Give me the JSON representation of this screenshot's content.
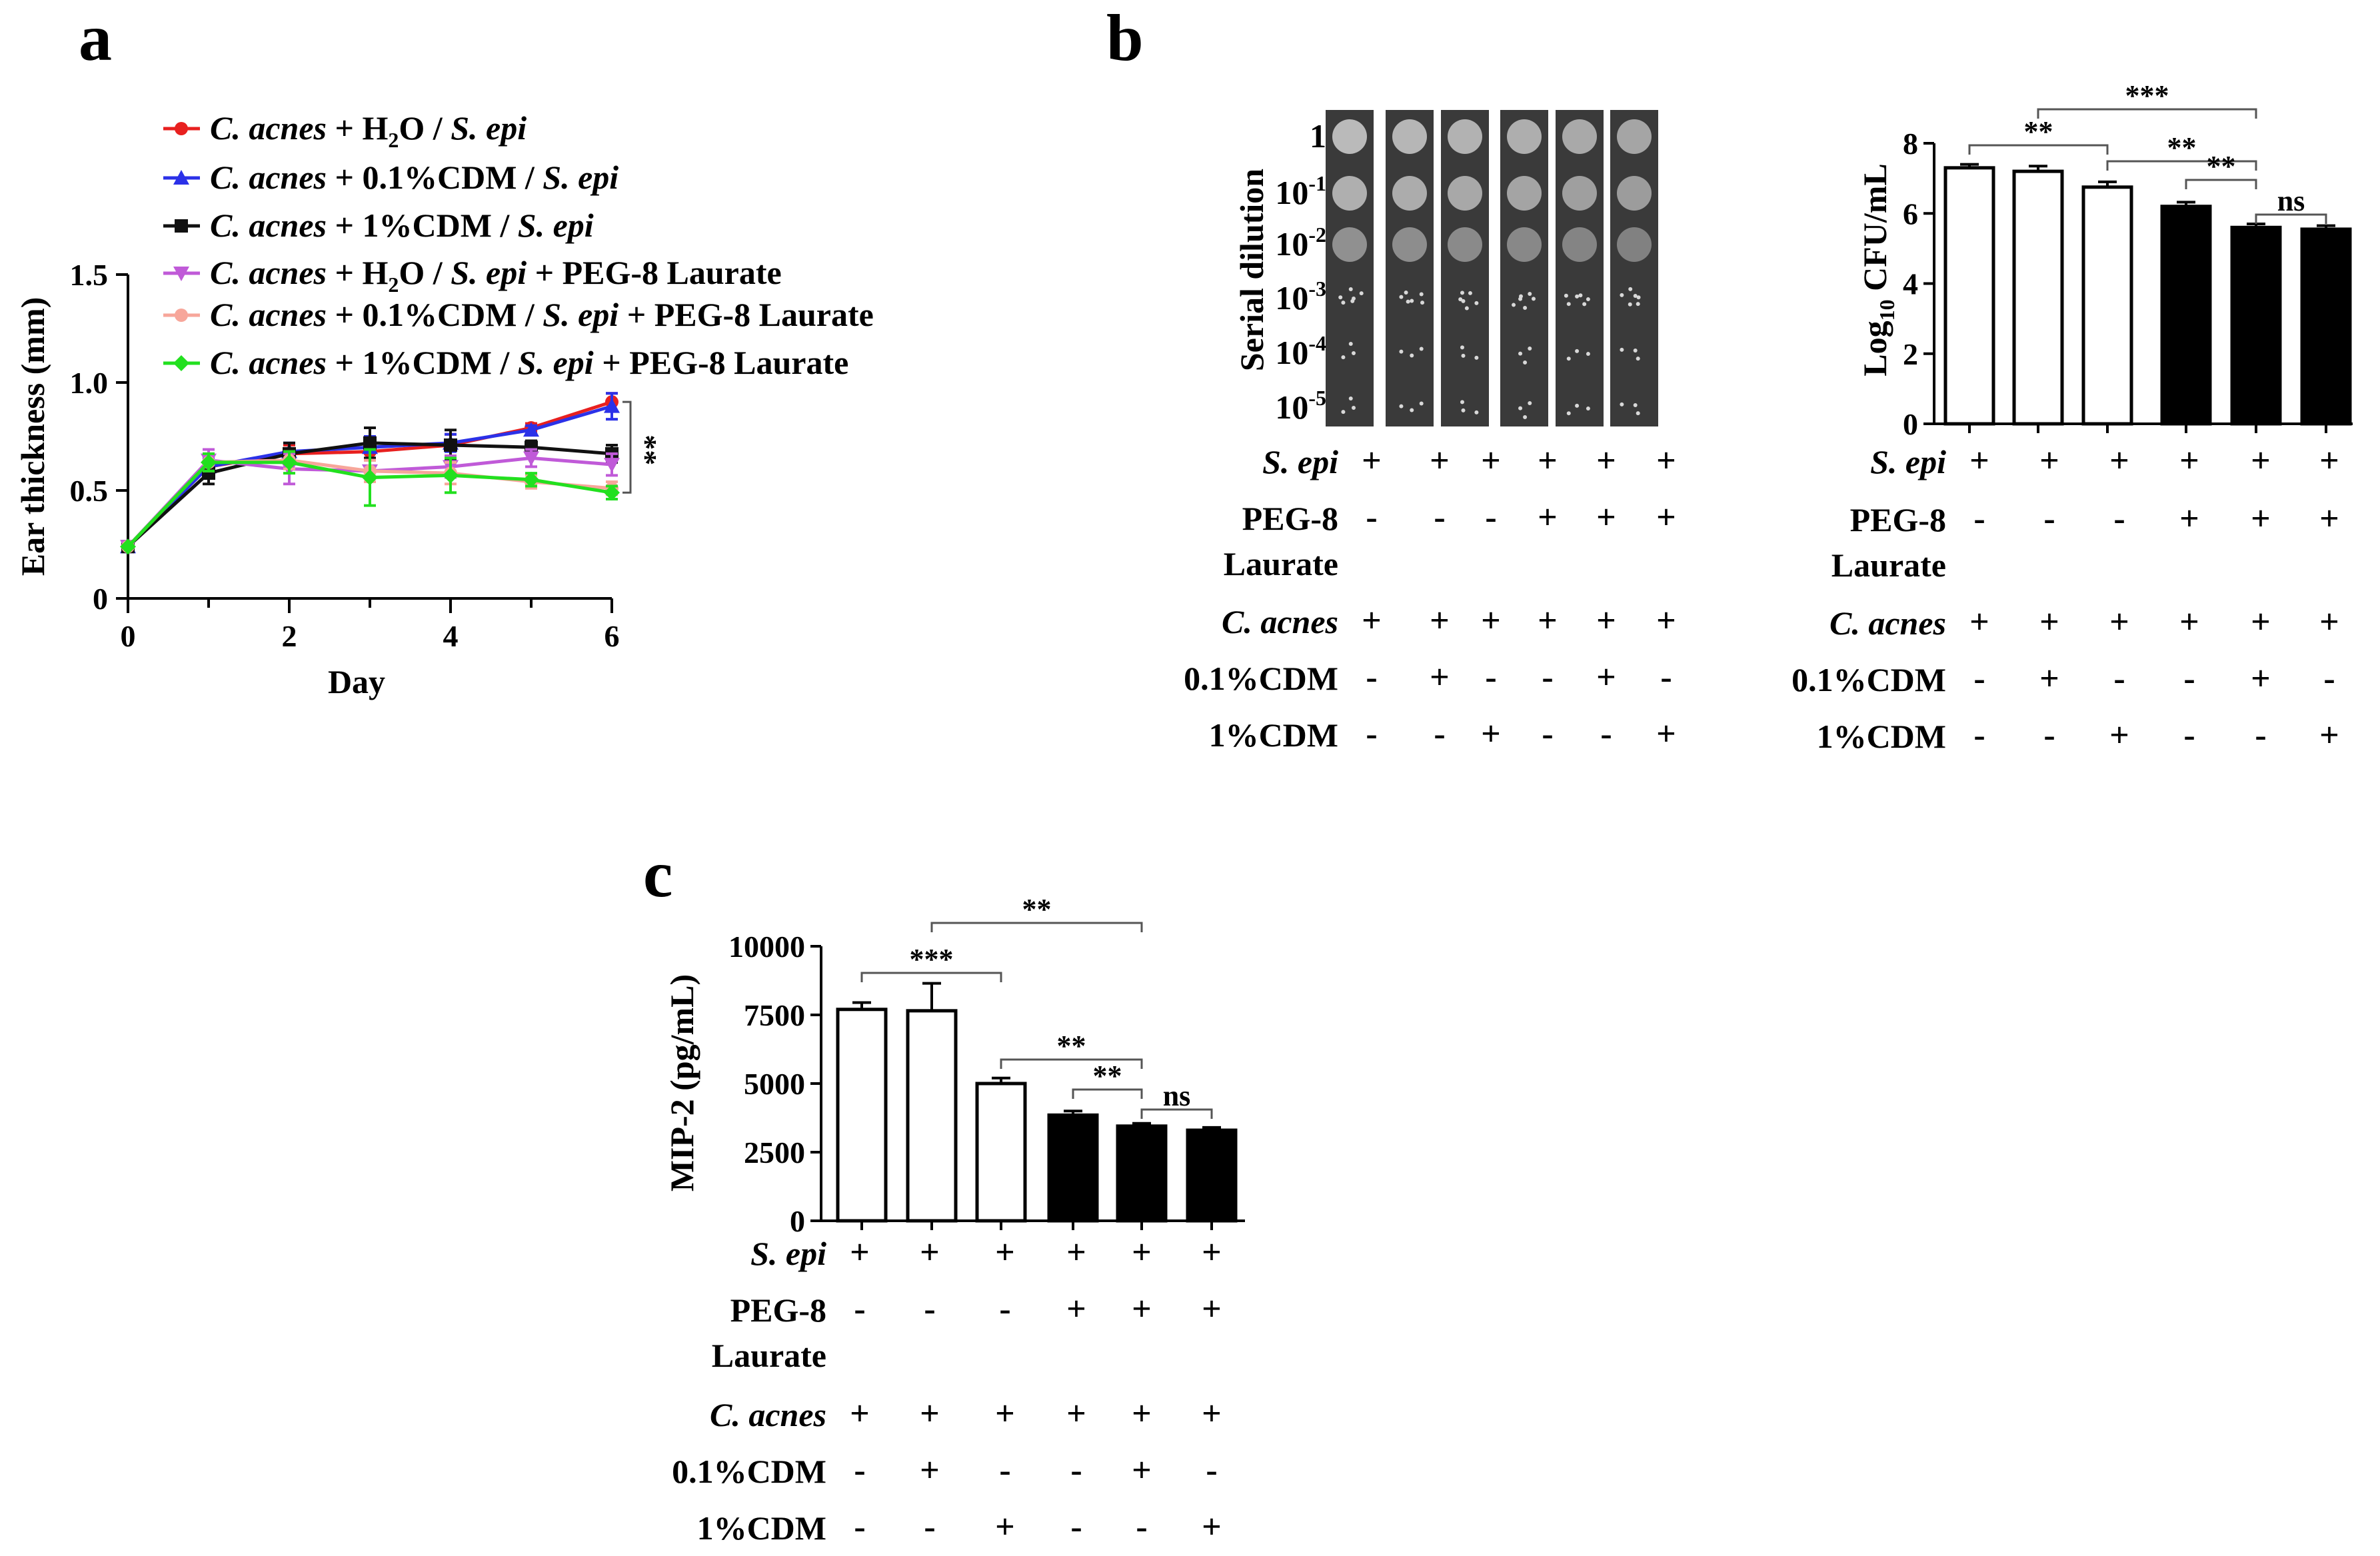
{
  "chart_data": [
    {
      "panel": "a",
      "type": "line",
      "xlabel": "Day",
      "ylabel": "Ear thickness (mm)",
      "xlim": [
        0,
        6
      ],
      "ylim": [
        0,
        1.5
      ],
      "x_ticks": [
        "0",
        "2",
        "4",
        "6"
      ],
      "y_ticks": [
        "0",
        "0.5",
        "1.0",
        "1.5"
      ],
      "x": [
        0,
        1,
        2,
        3,
        4,
        5,
        6
      ],
      "significance": "**",
      "series": [
        {
          "name_i1": "C. acnes",
          "name_mid": " + H",
          "name_sub": "2",
          "name_mid2": "O / ",
          "name_i2": "S. epi",
          "name_tail": "",
          "color": "#e8201f",
          "marker": "circle",
          "values": [
            0.24,
            0.61,
            0.67,
            0.68,
            0.71,
            0.79,
            0.91
          ],
          "errors": [
            0,
            0.05,
            0.04,
            0.04,
            0.05,
            0.02,
            0.04
          ]
        },
        {
          "name_i1": "C. acnes",
          "name_mid": " + 0.1%CDM / ",
          "name_sub": "",
          "name_mid2": "",
          "name_i2": "S. epi",
          "name_tail": "",
          "color": "#2b31e8",
          "marker": "triangle",
          "values": [
            0.24,
            0.61,
            0.68,
            0.7,
            0.72,
            0.78,
            0.89
          ],
          "errors": [
            0,
            0.04,
            0.04,
            0.05,
            0.04,
            0.02,
            0.06
          ]
        },
        {
          "name_i1": "C. acnes",
          "name_mid": " + 1%CDM / ",
          "name_sub": "",
          "name_mid2": "",
          "name_i2": "S. epi",
          "name_tail": "",
          "color": "#111111",
          "marker": "square",
          "values": [
            0.24,
            0.58,
            0.67,
            0.72,
            0.71,
            0.7,
            0.67
          ],
          "errors": [
            0,
            0.05,
            0.05,
            0.07,
            0.07,
            0.03,
            0.04
          ]
        },
        {
          "name_i1": "C. acnes",
          "name_mid": " + H",
          "name_sub": "2",
          "name_mid2": "O / ",
          "name_i2": "S. epi",
          "name_tail": " + PEG-8 Laurate",
          "color": "#c05ad8",
          "marker": "triangle-down",
          "values": [
            0.24,
            0.64,
            0.6,
            0.59,
            0.61,
            0.65,
            0.62
          ],
          "errors": [
            0,
            0.05,
            0.07,
            0.05,
            0.05,
            0.04,
            0.05
          ]
        },
        {
          "name_i1": "C. acnes",
          "name_mid": " + 0.1%CDM / ",
          "name_sub": "",
          "name_mid2": "",
          "name_i2": "S. epi",
          "name_tail": " + PEG-8 Laurate",
          "color": "#f7a69a",
          "marker": "circle",
          "values": [
            0.24,
            0.63,
            0.64,
            0.59,
            0.58,
            0.54,
            0.51
          ],
          "errors": [
            0,
            0.04,
            0.04,
            0.05,
            0.05,
            0.03,
            0.03
          ]
        },
        {
          "name_i1": "C. acnes",
          "name_mid": " + 1%CDM / ",
          "name_sub": "",
          "name_mid2": "",
          "name_i2": "S. epi",
          "name_tail": " + PEG-8 Laurate",
          "color": "#22e01f",
          "marker": "diamond",
          "values": [
            0.24,
            0.63,
            0.63,
            0.56,
            0.57,
            0.55,
            0.49
          ],
          "errors": [
            0,
            0.04,
            0.05,
            0.13,
            0.08,
            0.03,
            0.03
          ]
        }
      ]
    },
    {
      "panel": "b",
      "type": "bar",
      "ylabel": "CFU/mL",
      "ylabel_prefix": "Log",
      "ylabel_sub": "10",
      "ylim": [
        0,
        8
      ],
      "y_ticks": [
        "0",
        "2",
        "4",
        "6",
        "8"
      ],
      "values": [
        7.3,
        7.2,
        6.75,
        6.2,
        5.6,
        5.55
      ],
      "errors": [
        0.1,
        0.15,
        0.15,
        0.12,
        0.1,
        0.1
      ],
      "fills": [
        "white",
        "white",
        "white",
        "black",
        "black",
        "black"
      ],
      "significance": [
        {
          "from": 0,
          "to": 2,
          "label": "**"
        },
        {
          "from": 1,
          "to": 4,
          "label": "***"
        },
        {
          "from": 2,
          "to": 4,
          "label": "**"
        },
        {
          "from": 3,
          "to": 4,
          "label": "**"
        },
        {
          "from": 4,
          "to": 5,
          "label": "ns"
        }
      ]
    },
    {
      "panel": "c",
      "type": "bar",
      "ylabel": "MIP-2 (pg/mL)",
      "ylim": [
        0,
        10000
      ],
      "y_ticks": [
        "0",
        "2500",
        "5000",
        "7500",
        "10000"
      ],
      "values": [
        7700,
        7650,
        5000,
        3850,
        3450,
        3300
      ],
      "errors": [
        250,
        1000,
        200,
        150,
        100,
        100
      ],
      "fills": [
        "white",
        "white",
        "white",
        "black",
        "black",
        "black"
      ],
      "significance": [
        {
          "from": 0,
          "to": 2,
          "label": "***"
        },
        {
          "from": 1,
          "to": 4,
          "label": "**"
        },
        {
          "from": 2,
          "to": 4,
          "label": "**"
        },
        {
          "from": 3,
          "to": 4,
          "label": "**"
        },
        {
          "from": 4,
          "to": 5,
          "label": "ns"
        }
      ]
    }
  ],
  "panel_labels": {
    "a": "a",
    "b": "b",
    "c": "c"
  },
  "serial_dilution": {
    "ylabel": "Serial dilution",
    "row_base": "10",
    "rows": [
      {
        "base": "1",
        "exp": ""
      },
      {
        "base": "10",
        "exp": "-1"
      },
      {
        "base": "10",
        "exp": "-2"
      },
      {
        "base": "10",
        "exp": "-3"
      },
      {
        "base": "10",
        "exp": "-4"
      },
      {
        "base": "10",
        "exp": "-5"
      }
    ]
  },
  "conditions": {
    "rows": [
      {
        "label": "S. epi",
        "italic": true,
        "label2": "",
        "values": [
          "+",
          "+",
          "+",
          "+",
          "+",
          "+"
        ]
      },
      {
        "label": "PEG-8",
        "italic": false,
        "label2": "Laurate",
        "values": [
          "-",
          "-",
          "-",
          "+",
          "+",
          "+"
        ]
      },
      {
        "label": "C. acnes",
        "italic": true,
        "label2": "",
        "values": [
          "+",
          "+",
          "+",
          "+",
          "+",
          "+"
        ]
      },
      {
        "label": "0.1%CDM",
        "italic": false,
        "label2": "",
        "values": [
          "-",
          "+",
          "-",
          "-",
          "+",
          "-"
        ]
      },
      {
        "label": "1%CDM",
        "italic": false,
        "label2": "",
        "values": [
          "-",
          "-",
          "+",
          "-",
          "-",
          "+"
        ]
      }
    ]
  }
}
